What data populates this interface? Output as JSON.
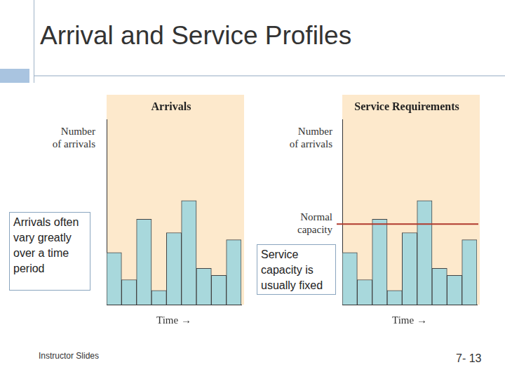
{
  "title": "Arrival and Service Profiles",
  "callouts": [
    "Arrivals often vary greatly over a time period",
    "Service capacity is usually fixed"
  ],
  "footer": {
    "left": "Instructor Slides",
    "right": "7- 13"
  },
  "chart_data": [
    {
      "type": "bar",
      "title": "Arrivals",
      "y_label": "Number of arrivals",
      "x_label": "Time →",
      "categories": [
        null,
        null,
        null,
        null,
        null,
        null,
        null,
        null,
        null
      ],
      "values": [
        73,
        35,
        120,
        20,
        101,
        146,
        51,
        41,
        91
      ],
      "color": "#a8d8dc",
      "ylim": [
        0,
        260
      ],
      "tick_labels": false,
      "grid": false
    },
    {
      "type": "bar",
      "title": "Service Requirements",
      "y_label": "Number of arrivals",
      "x_label": "Time →",
      "categories": [
        null,
        null,
        null,
        null,
        null,
        null,
        null,
        null,
        null
      ],
      "values": [
        73,
        35,
        120,
        20,
        101,
        146,
        51,
        41,
        91
      ],
      "color": "#a8d8dc",
      "ylim": [
        0,
        260
      ],
      "tick_labels": false,
      "grid": false,
      "reference_line": {
        "label": "Normal capacity",
        "value": 113,
        "color": "#b03a2e"
      }
    }
  ]
}
